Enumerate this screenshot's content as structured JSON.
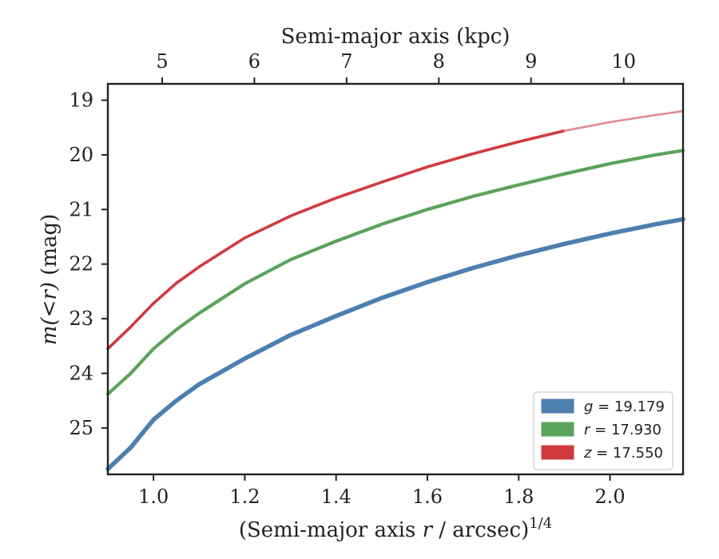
{
  "chart_data": {
    "type": "line",
    "title": "",
    "xlabel": "(Semi-major axis r / arcsec)^1/4",
    "xlabel_parts": {
      "prefix": "(Semi-major axis ",
      "var": "r",
      "middle": " / arcsec)",
      "sup": "1/4"
    },
    "ylabel": "m(<r) (mag)",
    "ylabel_parts": {
      "math": "m(<r)",
      "unit": " (mag)"
    },
    "top_xlabel": "Semi-major axis (kpc)",
    "xlim": [
      0.9,
      2.16
    ],
    "ylim": [
      25.85,
      18.7
    ],
    "y_inverted": true,
    "xticks": [
      1.0,
      1.2,
      1.4,
      1.6,
      1.8,
      2.0
    ],
    "xtick_labels": [
      "1.0",
      "1.2",
      "1.4",
      "1.6",
      "1.8",
      "2.0"
    ],
    "yticks": [
      19,
      20,
      21,
      22,
      23,
      24,
      25
    ],
    "ytick_labels": [
      "19",
      "20",
      "21",
      "22",
      "23",
      "24",
      "25"
    ],
    "top_ticks_x": [
      1.019,
      1.221,
      1.423,
      1.625,
      1.827,
      2.03
    ],
    "top_tick_labels": [
      "5",
      "6",
      "7",
      "8",
      "9",
      "10"
    ],
    "grid": false,
    "legend_position": "bottom-right",
    "series": [
      {
        "name": "g = 19.179",
        "legend_var": "g",
        "legend_value": "19.179",
        "color": "#4d7faf",
        "x": [
          0.9,
          0.95,
          1.0,
          1.05,
          1.1,
          1.2,
          1.3,
          1.4,
          1.5,
          1.6,
          1.7,
          1.8,
          1.9,
          2.0,
          2.1,
          2.16
        ],
        "y": [
          25.75,
          25.36,
          24.85,
          24.5,
          24.2,
          23.73,
          23.3,
          22.95,
          22.62,
          22.33,
          22.07,
          21.84,
          21.63,
          21.44,
          21.27,
          21.18
        ]
      },
      {
        "name": "r = 17.930",
        "legend_var": "r",
        "legend_value": "17.930",
        "color": "#5aa35a",
        "x": [
          0.9,
          0.95,
          1.0,
          1.05,
          1.1,
          1.2,
          1.3,
          1.4,
          1.5,
          1.6,
          1.7,
          1.8,
          1.9,
          2.0,
          2.1,
          2.16
        ],
        "y": [
          24.38,
          24.0,
          23.55,
          23.2,
          22.9,
          22.36,
          21.92,
          21.58,
          21.27,
          21.0,
          20.76,
          20.55,
          20.35,
          20.16,
          20.0,
          19.92
        ]
      },
      {
        "name": "z = 17.550",
        "legend_var": "z",
        "legend_value": "17.550",
        "color": "#d03a3f",
        "x": [
          0.9,
          0.95,
          1.0,
          1.05,
          1.1,
          1.2,
          1.3,
          1.4,
          1.5,
          1.6,
          1.7,
          1.8,
          1.9
        ],
        "y": [
          23.55,
          23.15,
          22.72,
          22.35,
          22.05,
          21.52,
          21.12,
          20.79,
          20.5,
          20.22,
          19.98,
          19.76,
          19.56
        ],
        "extension": {
          "color": "#e08a8d",
          "x": [
            1.9,
            2.0,
            2.1,
            2.16
          ],
          "y": [
            19.56,
            19.4,
            19.27,
            19.2
          ]
        }
      }
    ]
  }
}
